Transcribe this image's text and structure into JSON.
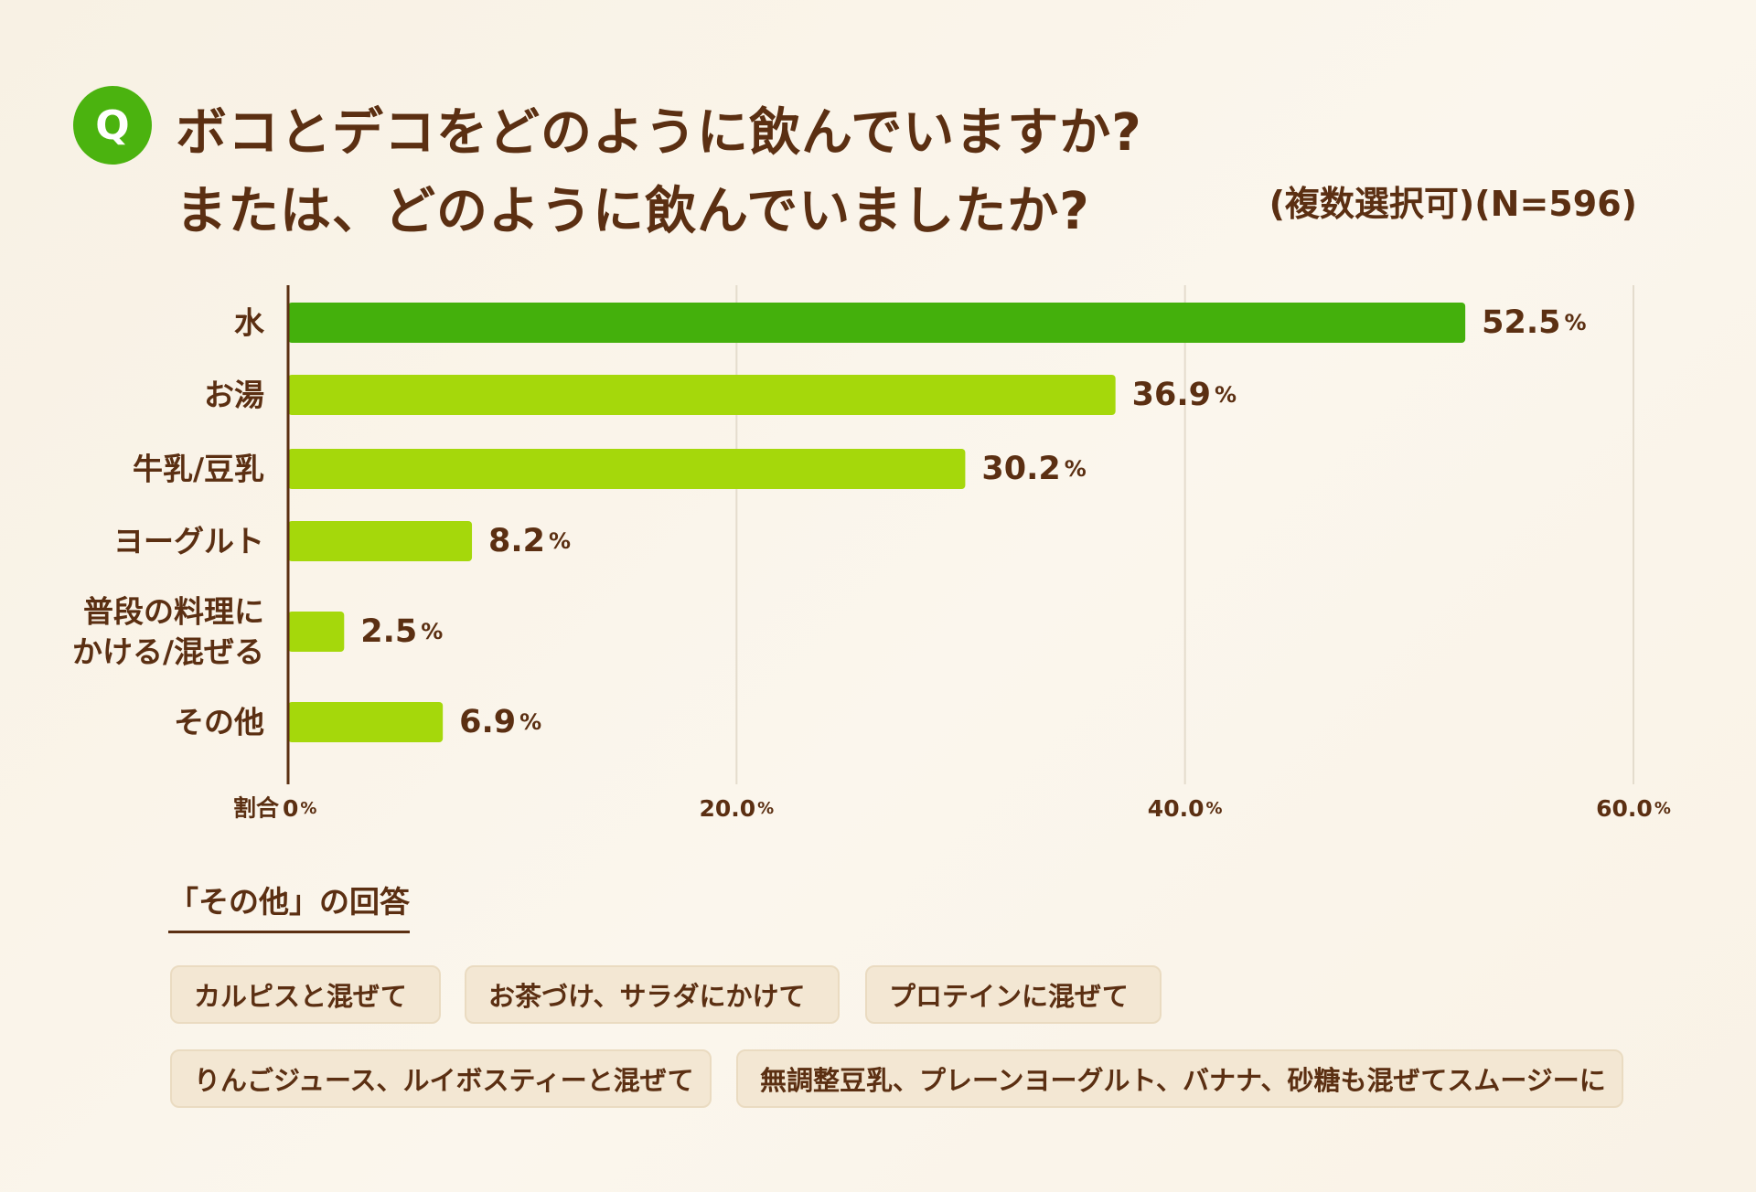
{
  "header": {
    "badge": "Q",
    "title_line1": "ボコとデコをどのように飲んでいますか?",
    "title_line2": "または、どのように飲んでいましたか?",
    "note": "(複数選択可)(N=596)"
  },
  "colors": {
    "highlight": "#44b00c",
    "bar": "#a5d80b",
    "text": "#5b2f12",
    "grid": "#e4dccd",
    "badge": "#4bb30f"
  },
  "chart_data": {
    "type": "bar",
    "orientation": "horizontal",
    "categories": [
      [
        "水"
      ],
      [
        "お湯"
      ],
      [
        "牛乳/豆乳"
      ],
      [
        "ヨーグルト"
      ],
      [
        "普段の料理に",
        "かける/混ぜる"
      ],
      [
        "その他"
      ]
    ],
    "values": [
      52.5,
      36.9,
      30.2,
      8.2,
      2.5,
      6.9
    ],
    "value_labels": [
      "52.5",
      "36.9",
      "30.2",
      "8.2",
      "2.5",
      "6.9"
    ],
    "unit": "%",
    "xlim": [
      0,
      60
    ],
    "ticks": [
      {
        "value": 0,
        "label": "0"
      },
      {
        "value": 20,
        "label": "20.0"
      },
      {
        "value": 40,
        "label": "40.0"
      },
      {
        "value": 60,
        "label": "60.0"
      }
    ],
    "axis_label": "割合",
    "grid": true,
    "highlight_index": 0
  },
  "other": {
    "heading": "「その他」の回答",
    "answers": [
      "カルピスと混ぜて",
      "お茶づけ、サラダにかけて",
      "プロテインに混ぜて",
      "りんごジュース、ルイボスティーと混ぜて",
      "無調整豆乳、プレーンヨーグルト、バナナ、砂糖も混ぜてスムージーに"
    ]
  }
}
